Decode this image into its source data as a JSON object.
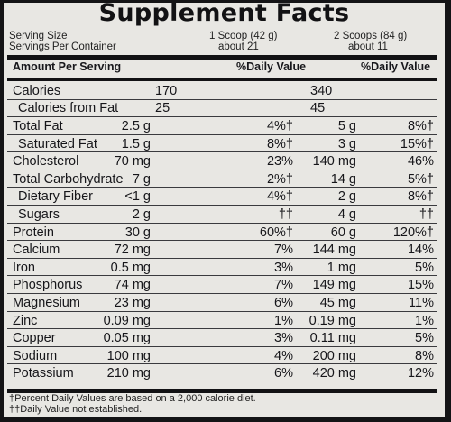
{
  "title": "Supplement Facts",
  "serving": {
    "size_label": "Serving Size",
    "per_container_label": "Servings Per Container",
    "col1_size": "1 Scoop (42 g)",
    "col1_servings": "about 21",
    "col2_size": "2 Scoops (84 g)",
    "col2_servings": "about 11"
  },
  "header": {
    "amount": "Amount Per Serving",
    "dv1": "%Daily Value",
    "dv2": "%Daily Value"
  },
  "calories": [
    {
      "label": "Calories",
      "v1": "170",
      "v2": "340"
    },
    {
      "label": "Calories from Fat",
      "v1": "25",
      "v2": "45"
    }
  ],
  "nutrients": [
    {
      "label": "Total Fat",
      "v1": "2.5 g",
      "p1": "4%†",
      "v2": "5 g",
      "p2": "8%†"
    },
    {
      "label": "Saturated Fat",
      "v1": "1.5 g",
      "p1": "8%†",
      "v2": "3 g",
      "p2": "15%†"
    },
    {
      "label": "Cholesterol",
      "v1": "70 mg",
      "p1": "23%",
      "v2": "140 mg",
      "p2": "46%"
    },
    {
      "label": "Total Carbohydrate",
      "v1": "7 g",
      "p1": "2%†",
      "v2": "14 g",
      "p2": "5%†"
    },
    {
      "label": "Dietary Fiber",
      "v1": "<1 g",
      "p1": "4%†",
      "v2": "2 g",
      "p2": "8%†"
    },
    {
      "label": "Sugars",
      "v1": "2 g",
      "p1": "††",
      "v2": "4 g",
      "p2": "††"
    },
    {
      "label": "Protein",
      "v1": "30 g",
      "p1": "60%†",
      "v2": "60 g",
      "p2": "120%†"
    },
    {
      "label": "Calcium",
      "v1": "72 mg",
      "p1": "7%",
      "v2": "144 mg",
      "p2": "14%"
    },
    {
      "label": "Iron",
      "v1": "0.5 mg",
      "p1": "3%",
      "v2": "1 mg",
      "p2": "5%"
    },
    {
      "label": "Phosphorus",
      "v1": "74 mg",
      "p1": "7%",
      "v2": "149 mg",
      "p2": "15%"
    },
    {
      "label": "Magnesium",
      "v1": "23 mg",
      "p1": "6%",
      "v2": "45 mg",
      "p2": "11%"
    },
    {
      "label": "Zinc",
      "v1": "0.09 mg",
      "p1": "1%",
      "v2": "0.19 mg",
      "p2": "1%"
    },
    {
      "label": "Copper",
      "v1": "0.05 mg",
      "p1": "3%",
      "v2": "0.11 mg",
      "p2": "5%"
    },
    {
      "label": "Sodium",
      "v1": "100 mg",
      "p1": "4%",
      "v2": "200 mg",
      "p2": "8%"
    },
    {
      "label": "Potassium",
      "v1": "210 mg",
      "p1": "6%",
      "v2": "420 mg",
      "p2": "12%"
    }
  ],
  "footnotes": [
    "†Percent Daily Values are based on a 2,000 calorie diet.",
    "††Daily Value not established."
  ]
}
